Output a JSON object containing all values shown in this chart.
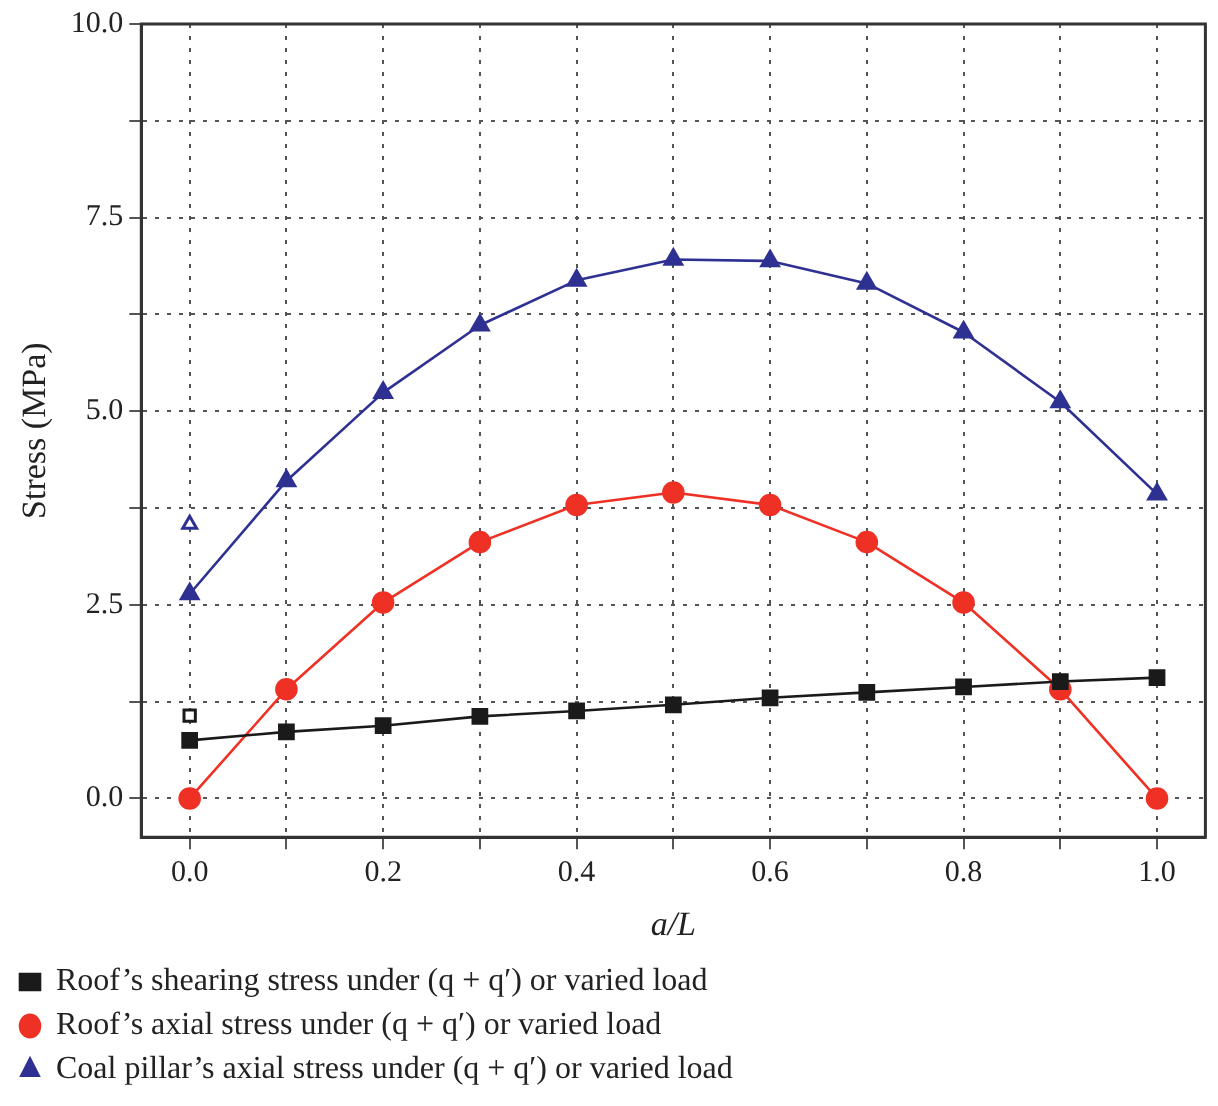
{
  "chart_data": {
    "type": "line",
    "xlabel": "a/L",
    "ylabel": "Stress (MPa)",
    "xlim": [
      -0.05,
      1.05
    ],
    "ylim": [
      -0.5,
      10
    ],
    "xticks": [
      {
        "value": 0,
        "label": "0.0"
      },
      {
        "value": 0.1,
        "label": null
      },
      {
        "value": 0.2,
        "label": "0.2"
      },
      {
        "value": 0.3,
        "label": null
      },
      {
        "value": 0.4,
        "label": "0.4"
      },
      {
        "value": 0.5,
        "label": null
      },
      {
        "value": 0.6,
        "label": "0.6"
      },
      {
        "value": 0.7,
        "label": null
      },
      {
        "value": 0.8,
        "label": "0.8"
      },
      {
        "value": 0.9,
        "label": null
      },
      {
        "value": 1,
        "label": "1.0"
      }
    ],
    "yticks": [
      {
        "value": 0,
        "label": "0.0"
      },
      {
        "value": 1.25,
        "label": null
      },
      {
        "value": 2.5,
        "label": "2.5"
      },
      {
        "value": 3.75,
        "label": null
      },
      {
        "value": 5,
        "label": "5.0"
      },
      {
        "value": 6.25,
        "label": null
      },
      {
        "value": 7.5,
        "label": "7.5"
      },
      {
        "value": 8.75,
        "label": null
      },
      {
        "value": 10,
        "label": "10.0"
      }
    ],
    "grid": true,
    "legend": "bottom",
    "line_style": "solid",
    "x": [
      0,
      0.1,
      0.2,
      0.3,
      0.4,
      0.5,
      0.6,
      0.7,
      0.8,
      0.9,
      1.0
    ],
    "series": [
      {
        "name": "Roof’s shearing stress under (q + q′) or varied load",
        "color": "#1a1a1a",
        "marker": "square",
        "values": [
          0.75,
          0.86,
          0.94,
          1.06,
          1.13,
          1.21,
          1.3,
          1.37,
          1.44,
          1.51,
          1.56
        ]
      },
      {
        "name": "Roof’s axial stress under (q + q′) or varied load",
        "color": "#ee3124",
        "marker": "circle",
        "values": [
          0,
          1.41,
          2.53,
          3.31,
          3.79,
          3.95,
          3.79,
          3.31,
          2.53,
          1.41,
          0
        ]
      },
      {
        "name": "Coal pillar’s axial stress under (q + q′) or varied load",
        "color": "#2e3192",
        "marker": "triangle",
        "values": [
          2.64,
          4.1,
          5.24,
          6.11,
          6.69,
          6.96,
          6.94,
          6.65,
          6.02,
          5.12,
          3.93
        ]
      },
      {
        "type": "scatter",
        "color": "#1a1a1a",
        "marker": "square",
        "values": [
          1.07,
          null,
          null,
          null,
          null,
          null,
          null,
          null,
          null,
          null,
          null
        ]
      },
      {
        "type": "scatter",
        "color": "#ee3124",
        "marker": "circle",
        "values": [
          0,
          null,
          null,
          null,
          null,
          null,
          null,
          null,
          null,
          null,
          null
        ]
      },
      {
        "type": "scatter",
        "color": "#2e3192",
        "marker": "triangle",
        "values": [
          3.54,
          null,
          null,
          null,
          null,
          null,
          null,
          null,
          null,
          null,
          null
        ]
      }
    ]
  }
}
